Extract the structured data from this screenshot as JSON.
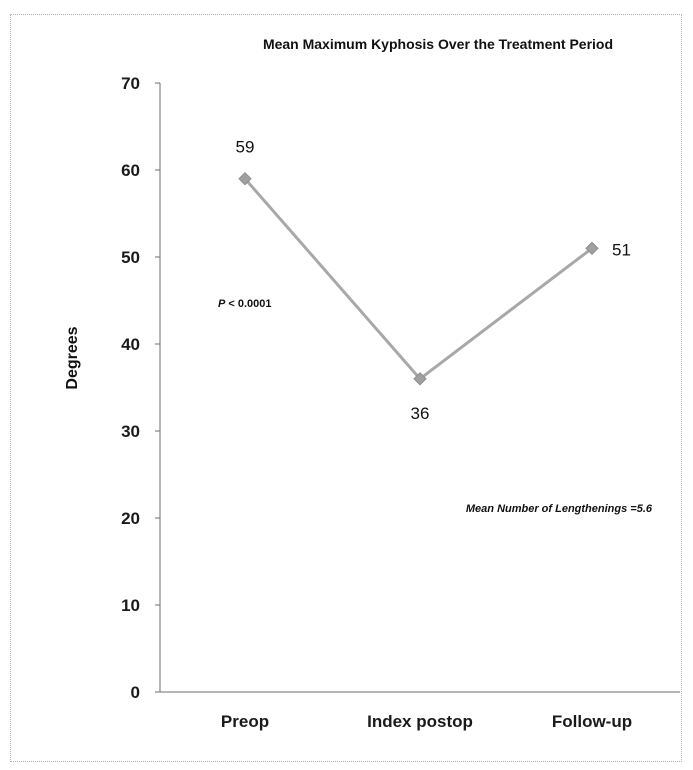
{
  "chart_data": {
    "type": "line",
    "title": "Mean Maximum Kyphosis Over the Treatment Period",
    "xlabel": "",
    "ylabel": "Degrees",
    "categories": [
      "Preop",
      "Index postop",
      "Follow-up"
    ],
    "series": [
      {
        "values": [
          59,
          36,
          51
        ]
      }
    ],
    "data_labels": [
      "59",
      "36",
      "51"
    ],
    "ylim": [
      0,
      70
    ],
    "yticks": [
      0,
      10,
      20,
      30,
      40,
      50,
      60,
      70
    ],
    "grid": false,
    "legend": "none",
    "annotations": {
      "p_symbol": "P",
      "p_value": " < 0.0001",
      "lengthenings": "Mean Number of Lengthenings =5.6"
    },
    "colors": {
      "line": "#a8a8a8",
      "marker": "#a0a0a0",
      "axis": "#6e6e6e"
    }
  }
}
